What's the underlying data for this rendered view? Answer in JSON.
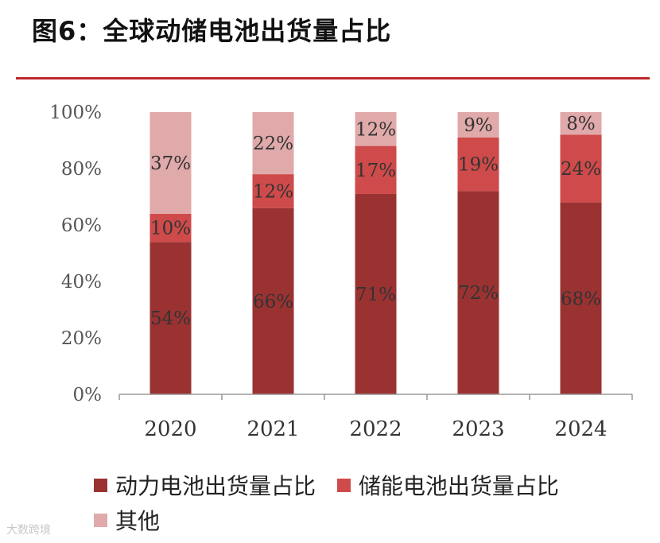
{
  "title": "图6：全球动储电池出货量占比",
  "watermark": "大数跨境",
  "colors": {
    "rule": "#c0282d",
    "power": "#9b3232",
    "storage": "#cf4a4a",
    "other": "#e0a9aa"
  },
  "chart_data": {
    "type": "bar",
    "stacked": true,
    "categories": [
      "2020",
      "2021",
      "2022",
      "2023",
      "2024"
    ],
    "series": [
      {
        "name": "动力电池出货量占比",
        "values": [
          54,
          66,
          71,
          72,
          68
        ],
        "labels": [
          "54%",
          "66%",
          "71%",
          "72%",
          "68%"
        ]
      },
      {
        "name": "储能电池出货量占比",
        "values": [
          10,
          12,
          17,
          19,
          24
        ],
        "labels": [
          "10%",
          "12%",
          "17%",
          "19%",
          "24%"
        ]
      },
      {
        "name": "其他",
        "values": [
          37,
          22,
          12,
          9,
          8
        ],
        "labels": [
          "37%",
          "22%",
          "12%",
          "9%",
          "8%"
        ]
      }
    ],
    "ylim": [
      0,
      100
    ],
    "yticks": [
      "0%",
      "20%",
      "40%",
      "60%",
      "80%",
      "100%"
    ],
    "legend_position": "bottom",
    "grid": false
  }
}
